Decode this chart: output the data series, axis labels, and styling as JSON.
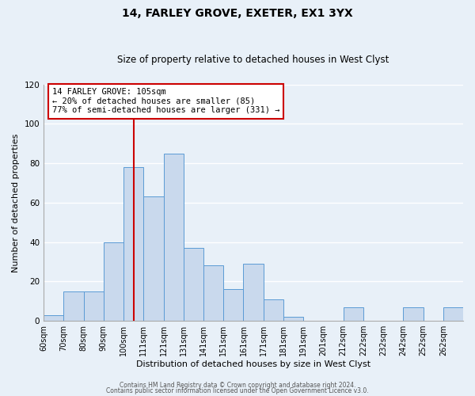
{
  "title": "14, FARLEY GROVE, EXETER, EX1 3YX",
  "subtitle": "Size of property relative to detached houses in West Clyst",
  "xlabel": "Distribution of detached houses by size in West Clyst",
  "ylabel": "Number of detached properties",
  "bin_edges": [
    60,
    70,
    80,
    90,
    100,
    111,
    121,
    131,
    141,
    151,
    161,
    171,
    181,
    191,
    201,
    212,
    222,
    232,
    242,
    252,
    262,
    272
  ],
  "counts": [
    3,
    15,
    15,
    40,
    78,
    63,
    85,
    37,
    28,
    16,
    29,
    11,
    2,
    0,
    0,
    7,
    0,
    0,
    7,
    0,
    7
  ],
  "tick_labels": [
    "60sqm",
    "70sqm",
    "80sqm",
    "90sqm",
    "100sqm",
    "111sqm",
    "121sqm",
    "131sqm",
    "141sqm",
    "151sqm",
    "161sqm",
    "171sqm",
    "181sqm",
    "191sqm",
    "201sqm",
    "212sqm",
    "222sqm",
    "232sqm",
    "242sqm",
    "252sqm",
    "262sqm"
  ],
  "bar_facecolor": "#c9d9ed",
  "bar_edgecolor": "#5b9bd5",
  "vline_x_index": 4.5,
  "vline_color": "#cc0000",
  "ylim": [
    0,
    120
  ],
  "yticks": [
    0,
    20,
    40,
    60,
    80,
    100,
    120
  ],
  "annotation_line1": "14 FARLEY GROVE: 105sqm",
  "annotation_line2": "← 20% of detached houses are smaller (85)",
  "annotation_line3": "77% of semi-detached houses are larger (331) →",
  "annotation_box_edgecolor": "#cc0000",
  "footer_line1": "Contains HM Land Registry data © Crown copyright and database right 2024.",
  "footer_line2": "Contains public sector information licensed under the Open Government Licence v3.0.",
  "background_color": "#e8f0f8",
  "grid_color": "#ffffff",
  "title_fontsize": 10,
  "subtitle_fontsize": 8.5,
  "axis_label_fontsize": 8,
  "tick_fontsize": 7,
  "annotation_fontsize": 7.5,
  "footer_fontsize": 5.5
}
